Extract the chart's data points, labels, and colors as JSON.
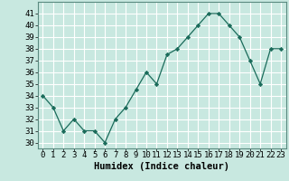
{
  "x": [
    0,
    1,
    2,
    3,
    4,
    5,
    6,
    7,
    8,
    9,
    10,
    11,
    12,
    13,
    14,
    15,
    16,
    17,
    18,
    19,
    20,
    21,
    22,
    23
  ],
  "y": [
    34,
    33,
    31,
    32,
    31,
    31,
    30,
    32,
    33,
    34.5,
    36,
    35,
    37.5,
    38,
    39,
    40,
    41,
    41,
    40,
    39,
    37,
    35,
    38,
    38
  ],
  "line_color": "#1a6b5a",
  "marker_color": "#1a6b5a",
  "bg_color": "#c8e8e0",
  "grid_color": "#ffffff",
  "xlabel": "Humidex (Indice chaleur)",
  "xlim": [
    -0.5,
    23.5
  ],
  "ylim": [
    29.5,
    42
  ],
  "yticks": [
    30,
    31,
    32,
    33,
    34,
    35,
    36,
    37,
    38,
    39,
    40,
    41
  ],
  "xtick_labels": [
    "0",
    "1",
    "2",
    "3",
    "4",
    "5",
    "6",
    "7",
    "8",
    "9",
    "10",
    "11",
    "12",
    "13",
    "14",
    "15",
    "16",
    "17",
    "18",
    "19",
    "20",
    "21",
    "22",
    "23"
  ],
  "label_fontsize": 7.5,
  "tick_fontsize": 6.5
}
